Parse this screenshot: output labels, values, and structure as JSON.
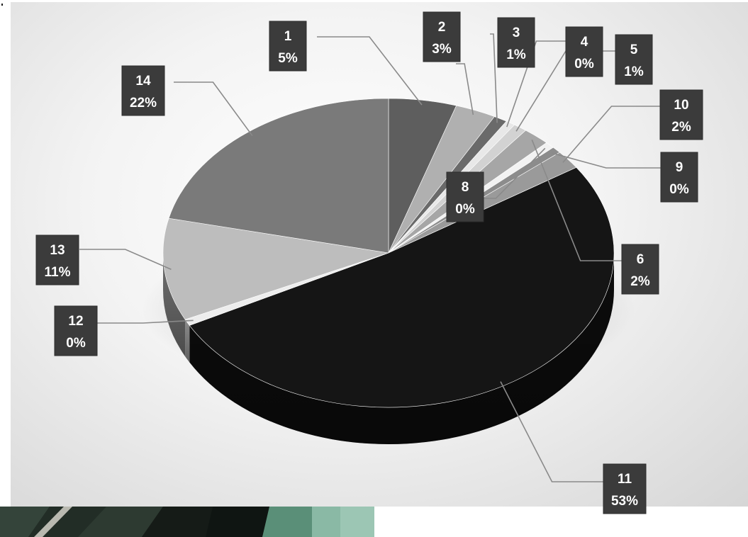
{
  "chart_data": {
    "type": "pie",
    "style": "3d-exploded-perspective",
    "categories": [
      "1",
      "2",
      "3",
      "4",
      "5",
      "6",
      "8",
      "9",
      "10",
      "11",
      "12",
      "13",
      "14"
    ],
    "values": [
      5,
      3,
      1,
      0,
      1,
      2,
      0,
      0,
      2,
      53,
      0,
      11,
      22
    ],
    "label_percent": [
      "5%",
      "3%",
      "1%",
      "0%",
      "1%",
      "2%",
      "0%",
      "0%",
      "2%",
      "53%",
      "0%",
      "11%",
      "22%"
    ],
    "colors": [
      "#5e5e5e",
      "#b0b0b0",
      "#6a6a6a",
      "#e8e8e8",
      "#d2d2d2",
      "#a6a6a6",
      "#f2f2f2",
      "#8c8c8c",
      "#9a9a9a",
      "#151515",
      "#ededed",
      "#bdbdbd",
      "#7a7a7a"
    ],
    "title": "",
    "legend": "none",
    "data_labels": "category-and-percent-with-leader-lines"
  }
}
